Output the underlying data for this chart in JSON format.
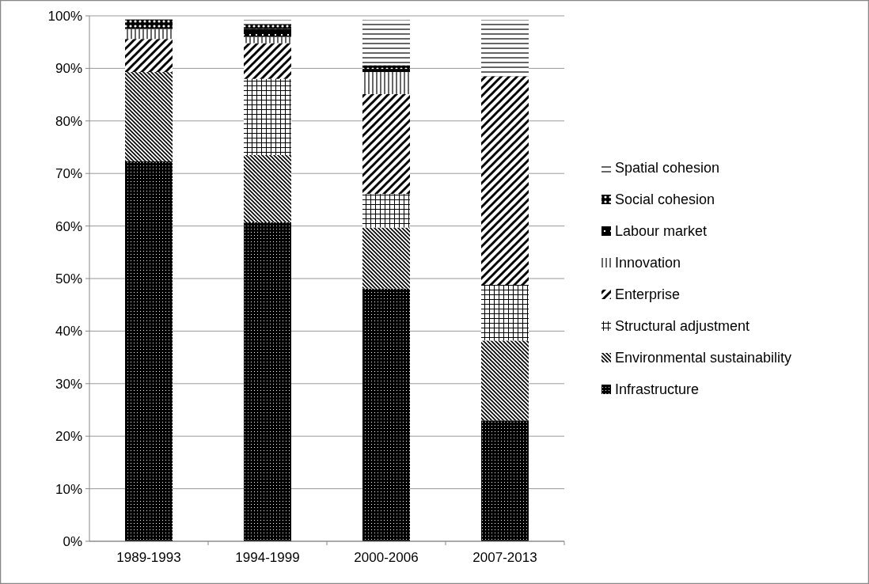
{
  "chart_data": {
    "type": "bar",
    "stacked": true,
    "categories": [
      "1989-1993",
      "1994-1999",
      "2000-2006",
      "2007-2013"
    ],
    "series": [
      {
        "name": "Infrastructure",
        "color": "#000000",
        "values": [
          72.3,
          60.7,
          48.1,
          23.0
        ]
      },
      {
        "name": "Environmental sustainability",
        "color": "#000000",
        "values": [
          17.0,
          12.8,
          11.6,
          15.2
        ]
      },
      {
        "name": "Structural adjustment",
        "color": "#000000",
        "values": [
          0,
          14.5,
          6.4,
          10.6
        ]
      },
      {
        "name": "Enterprise",
        "color": "#000000",
        "values": [
          6.3,
          6.8,
          19.0,
          39.7
        ]
      },
      {
        "name": "Innovation",
        "color": "#000000",
        "values": [
          1.9,
          1.2,
          4.2,
          0
        ]
      },
      {
        "name": "Labour market",
        "color": "#000000",
        "values": [
          0,
          1.5,
          0.6,
          0
        ]
      },
      {
        "name": "Social cohesion",
        "color": "#000000",
        "values": [
          1.8,
          0.9,
          0.7,
          0
        ]
      },
      {
        "name": "Spatial cohesion",
        "color": "#000000",
        "values": [
          0,
          0.8,
          8.6,
          10.7
        ]
      }
    ],
    "ylim": [
      0,
      100
    ],
    "yticks": [
      {
        "value": 0,
        "label": "0%"
      },
      {
        "value": 10,
        "label": "10%"
      },
      {
        "value": 20,
        "label": "20%"
      },
      {
        "value": 30,
        "label": "30%"
      },
      {
        "value": 40,
        "label": "40%"
      },
      {
        "value": 50,
        "label": "50%"
      },
      {
        "value": 60,
        "label": "60%"
      },
      {
        "value": 70,
        "label": "70%"
      },
      {
        "value": 80,
        "label": "80%"
      },
      {
        "value": 90,
        "label": "90%"
      },
      {
        "value": 100,
        "label": "100%"
      }
    ],
    "grid": "y",
    "legend": "right"
  }
}
